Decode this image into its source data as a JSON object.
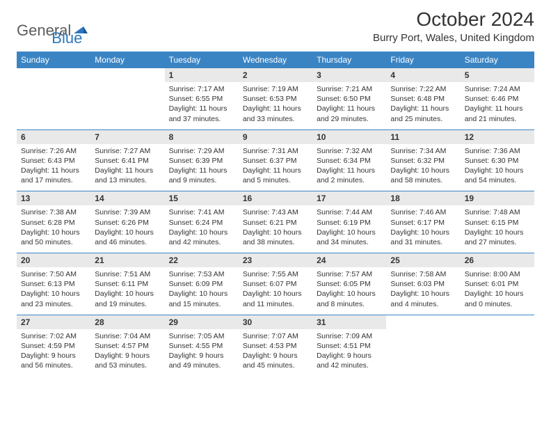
{
  "logo": {
    "general": "General",
    "blue": "Blue"
  },
  "title": "October 2024",
  "location": "Burry Port, Wales, United Kingdom",
  "colors": {
    "header_bg": "#3b84c4",
    "header_text": "#ffffff",
    "daynum_bg": "#e9e9e9",
    "border": "#3b84c4",
    "logo_gray": "#5c5c5c",
    "logo_blue": "#2d78bd"
  },
  "day_headers": [
    "Sunday",
    "Monday",
    "Tuesday",
    "Wednesday",
    "Thursday",
    "Friday",
    "Saturday"
  ],
  "weeks": [
    [
      null,
      null,
      {
        "n": "1",
        "sr": "7:17 AM",
        "ss": "6:55 PM",
        "dl": "11 hours and 37 minutes."
      },
      {
        "n": "2",
        "sr": "7:19 AM",
        "ss": "6:53 PM",
        "dl": "11 hours and 33 minutes."
      },
      {
        "n": "3",
        "sr": "7:21 AM",
        "ss": "6:50 PM",
        "dl": "11 hours and 29 minutes."
      },
      {
        "n": "4",
        "sr": "7:22 AM",
        "ss": "6:48 PM",
        "dl": "11 hours and 25 minutes."
      },
      {
        "n": "5",
        "sr": "7:24 AM",
        "ss": "6:46 PM",
        "dl": "11 hours and 21 minutes."
      }
    ],
    [
      {
        "n": "6",
        "sr": "7:26 AM",
        "ss": "6:43 PM",
        "dl": "11 hours and 17 minutes."
      },
      {
        "n": "7",
        "sr": "7:27 AM",
        "ss": "6:41 PM",
        "dl": "11 hours and 13 minutes."
      },
      {
        "n": "8",
        "sr": "7:29 AM",
        "ss": "6:39 PM",
        "dl": "11 hours and 9 minutes."
      },
      {
        "n": "9",
        "sr": "7:31 AM",
        "ss": "6:37 PM",
        "dl": "11 hours and 5 minutes."
      },
      {
        "n": "10",
        "sr": "7:32 AM",
        "ss": "6:34 PM",
        "dl": "11 hours and 2 minutes."
      },
      {
        "n": "11",
        "sr": "7:34 AM",
        "ss": "6:32 PM",
        "dl": "10 hours and 58 minutes."
      },
      {
        "n": "12",
        "sr": "7:36 AM",
        "ss": "6:30 PM",
        "dl": "10 hours and 54 minutes."
      }
    ],
    [
      {
        "n": "13",
        "sr": "7:38 AM",
        "ss": "6:28 PM",
        "dl": "10 hours and 50 minutes."
      },
      {
        "n": "14",
        "sr": "7:39 AM",
        "ss": "6:26 PM",
        "dl": "10 hours and 46 minutes."
      },
      {
        "n": "15",
        "sr": "7:41 AM",
        "ss": "6:24 PM",
        "dl": "10 hours and 42 minutes."
      },
      {
        "n": "16",
        "sr": "7:43 AM",
        "ss": "6:21 PM",
        "dl": "10 hours and 38 minutes."
      },
      {
        "n": "17",
        "sr": "7:44 AM",
        "ss": "6:19 PM",
        "dl": "10 hours and 34 minutes."
      },
      {
        "n": "18",
        "sr": "7:46 AM",
        "ss": "6:17 PM",
        "dl": "10 hours and 31 minutes."
      },
      {
        "n": "19",
        "sr": "7:48 AM",
        "ss": "6:15 PM",
        "dl": "10 hours and 27 minutes."
      }
    ],
    [
      {
        "n": "20",
        "sr": "7:50 AM",
        "ss": "6:13 PM",
        "dl": "10 hours and 23 minutes."
      },
      {
        "n": "21",
        "sr": "7:51 AM",
        "ss": "6:11 PM",
        "dl": "10 hours and 19 minutes."
      },
      {
        "n": "22",
        "sr": "7:53 AM",
        "ss": "6:09 PM",
        "dl": "10 hours and 15 minutes."
      },
      {
        "n": "23",
        "sr": "7:55 AM",
        "ss": "6:07 PM",
        "dl": "10 hours and 11 minutes."
      },
      {
        "n": "24",
        "sr": "7:57 AM",
        "ss": "6:05 PM",
        "dl": "10 hours and 8 minutes."
      },
      {
        "n": "25",
        "sr": "7:58 AM",
        "ss": "6:03 PM",
        "dl": "10 hours and 4 minutes."
      },
      {
        "n": "26",
        "sr": "8:00 AM",
        "ss": "6:01 PM",
        "dl": "10 hours and 0 minutes."
      }
    ],
    [
      {
        "n": "27",
        "sr": "7:02 AM",
        "ss": "4:59 PM",
        "dl": "9 hours and 56 minutes."
      },
      {
        "n": "28",
        "sr": "7:04 AM",
        "ss": "4:57 PM",
        "dl": "9 hours and 53 minutes."
      },
      {
        "n": "29",
        "sr": "7:05 AM",
        "ss": "4:55 PM",
        "dl": "9 hours and 49 minutes."
      },
      {
        "n": "30",
        "sr": "7:07 AM",
        "ss": "4:53 PM",
        "dl": "9 hours and 45 minutes."
      },
      {
        "n": "31",
        "sr": "7:09 AM",
        "ss": "4:51 PM",
        "dl": "9 hours and 42 minutes."
      },
      null,
      null
    ]
  ],
  "labels": {
    "sunrise": "Sunrise:",
    "sunset": "Sunset:",
    "daylight": "Daylight:"
  }
}
